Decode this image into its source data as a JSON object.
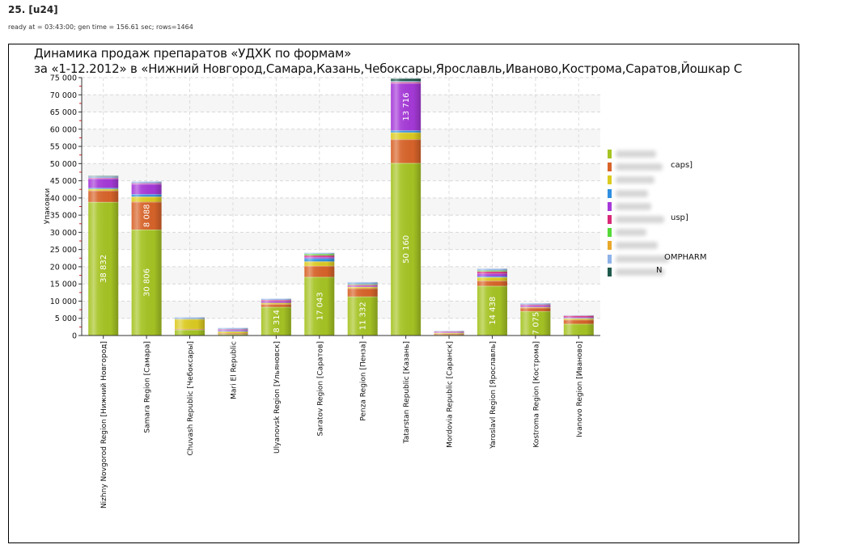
{
  "header": {
    "title": "25. [u24]",
    "meta": "ready at = 03:43:00; gen time = 156.61 sec; rows=1464"
  },
  "chart_data": {
    "type": "bar",
    "stacked": true,
    "title_line1": "Динамика продаж препаратов «УДХК по формам»",
    "title_line2": "за «1-12.2012» в «Нижний Новгород,Самара,Казань,Чебоксары,Ярославль,Иваново,Кострома,Саратов,Йошкар С",
    "xlabel": "",
    "ylabel": "Упаковки",
    "ylim": [
      0,
      75000
    ],
    "yticks": [
      0,
      5000,
      10000,
      15000,
      20000,
      25000,
      30000,
      35000,
      40000,
      45000,
      50000,
      55000,
      60000,
      65000,
      70000,
      75000
    ],
    "ytick_labels": [
      "0",
      "5 000",
      "10 000",
      "15 000",
      "20 000",
      "25 000",
      "30 000",
      "35 000",
      "40 000",
      "45 000",
      "50 000",
      "55 000",
      "60 000",
      "65 000",
      "70 000",
      "75 000"
    ],
    "grid": true,
    "legend_position": "right",
    "categories": [
      "Nizhny Novgorod Region [Нижний Новгород]",
      "Samara Region [Самара]",
      "Chuvash Republic [Чебоксары]",
      "Mari El Republic",
      "Ulyanovsk Region [Ульяновск]",
      "Saratov Region [Саратов]",
      "Penza Region [Пенза]",
      "Tatarstan Republic [Казань]",
      "Mordovia Republic [Саранск]",
      "Yaroslavl Region [Ярославль]",
      "Kostroma Region [Кострома]",
      "Ivanovo Region [Иваново]"
    ],
    "series": [
      {
        "name": "caps]",
        "legend_visible_suffix": "",
        "color": "#a6c424",
        "values": [
          38832,
          30806,
          1700,
          400,
          8314,
          17043,
          11332,
          50160,
          200,
          14438,
          7075,
          3400
        ]
      },
      {
        "name": "caps]",
        "legend_visible_suffix": "caps]",
        "color": "#d8642a",
        "values": [
          3300,
          8088,
          200,
          300,
          800,
          3200,
          2400,
          6900,
          300,
          1500,
          1000,
          1200
        ]
      },
      {
        "name": "",
        "legend_visible_suffix": "",
        "color": "#dccb22",
        "values": [
          500,
          1500,
          2900,
          500,
          400,
          1300,
          400,
          2000,
          250,
          1000,
          200,
          400
        ]
      },
      {
        "name": "",
        "legend_visible_suffix": "",
        "color": "#2f8fe0",
        "values": [
          300,
          700,
          0,
          100,
          0,
          900,
          0,
          600,
          0,
          300,
          0,
          100
        ]
      },
      {
        "name": "",
        "legend_visible_suffix": "",
        "color": "#a63ad8",
        "values": [
          2700,
          3000,
          0,
          300,
          500,
          400,
          300,
          13716,
          200,
          800,
          400,
          200
        ]
      },
      {
        "name": "usp]",
        "legend_visible_suffix": "usp]",
        "color": "#d82a78",
        "values": [
          200,
          200,
          0,
          200,
          300,
          500,
          300,
          300,
          200,
          600,
          300,
          500
        ]
      },
      {
        "name": "",
        "legend_visible_suffix": "",
        "color": "#55d838",
        "values": [
          0,
          0,
          0,
          0,
          0,
          400,
          200,
          0,
          0,
          300,
          0,
          0
        ]
      },
      {
        "name": "",
        "legend_visible_suffix": "",
        "color": "#e8a82a",
        "values": [
          0,
          0,
          0,
          0,
          0,
          0,
          0,
          0,
          0,
          0,
          0,
          0
        ]
      },
      {
        "name": "OMPHARM",
        "legend_visible_suffix": "OMPHARM",
        "color": "#8eb2e8",
        "values": [
          400,
          500,
          500,
          400,
          400,
          300,
          600,
          300,
          200,
          500,
          400,
          100
        ]
      },
      {
        "name": "N",
        "legend_visible_suffix": "N",
        "color": "#1f5a4c",
        "values": [
          200,
          0,
          0,
          0,
          0,
          0,
          0,
          800,
          0,
          0,
          0,
          0
        ]
      }
    ],
    "data_labels": [
      {
        "category_index": 0,
        "series_index": 0,
        "text": "38 832"
      },
      {
        "category_index": 1,
        "series_index": 0,
        "text": "30 806"
      },
      {
        "category_index": 1,
        "series_index": 1,
        "text": "8 088"
      },
      {
        "category_index": 4,
        "series_index": 0,
        "text": "8 314"
      },
      {
        "category_index": 5,
        "series_index": 0,
        "text": "17 043"
      },
      {
        "category_index": 6,
        "series_index": 0,
        "text": "11 332"
      },
      {
        "category_index": 7,
        "series_index": 0,
        "text": "50 160"
      },
      {
        "category_index": 7,
        "series_index": 4,
        "text": "13 716"
      },
      {
        "category_index": 9,
        "series_index": 0,
        "text": "14 438"
      },
      {
        "category_index": 10,
        "series_index": 0,
        "text": "7 075"
      }
    ]
  }
}
